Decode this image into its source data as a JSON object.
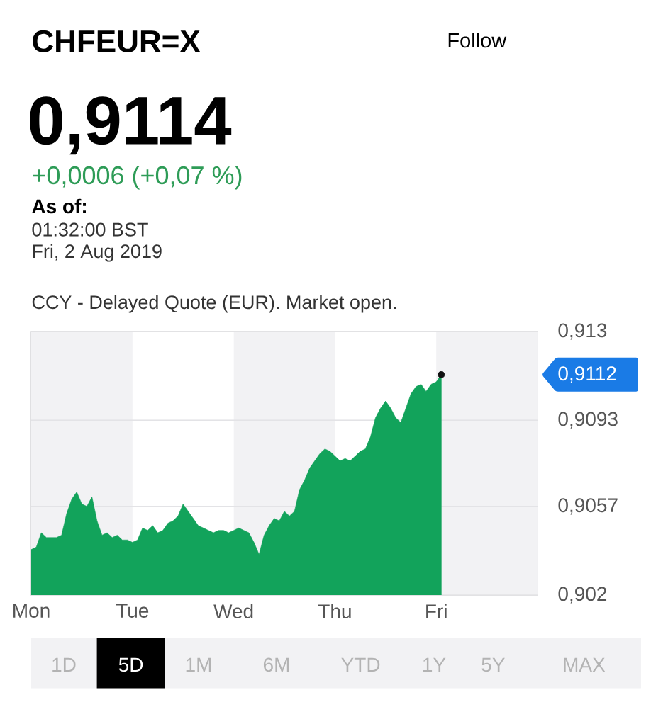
{
  "chart_data": {
    "type": "area",
    "title": "CHFEUR=X",
    "subtitle": "0,9114",
    "annotations": [
      "+0,0006 (+0,07 %)",
      "As of:",
      "01:32:00 BST",
      "Fri, 2 Aug 2019",
      "CCY - Delayed Quote (EUR). Market open.",
      "Follow",
      "0,9112",
      "1D",
      "5D",
      "1M",
      "6M",
      "YTD",
      "1Y",
      "5Y",
      "MAX"
    ],
    "categories": [
      "Mon",
      null,
      null,
      null,
      null,
      null,
      null,
      null,
      null,
      null,
      null,
      null,
      null,
      null,
      null,
      null,
      null,
      null,
      null,
      null,
      "Tue",
      null,
      null,
      null,
      null,
      null,
      null,
      null,
      null,
      null,
      null,
      null,
      null,
      null,
      null,
      null,
      null,
      null,
      null,
      null,
      "Wed",
      null,
      null,
      null,
      null,
      null,
      null,
      null,
      null,
      null,
      null,
      null,
      null,
      null,
      null,
      null,
      null,
      null,
      null,
      null,
      "Thu",
      null,
      null,
      null,
      null,
      null,
      null,
      null,
      null,
      null,
      null,
      null,
      null,
      null,
      null,
      null,
      null,
      null,
      null,
      null,
      "Fri",
      null,
      null,
      null,
      null,
      null,
      null,
      null,
      null,
      null,
      null,
      null,
      null,
      null,
      null,
      null,
      null,
      null,
      null,
      null,
      null
    ],
    "series": [
      {
        "color": "#12a35b",
        "values": [
          0.9039,
          0.904,
          0.9046,
          0.9044,
          0.9044,
          0.9044,
          0.9045,
          0.9054,
          0.906,
          0.9063,
          0.9058,
          0.9057,
          0.9061,
          0.9051,
          0.9045,
          0.9046,
          0.9044,
          0.9045,
          0.9043,
          0.9043,
          0.9042,
          0.9043,
          0.9048,
          0.9047,
          0.9049,
          0.9046,
          0.9047,
          0.905,
          0.9051,
          0.9053,
          0.9058,
          0.9055,
          0.9052,
          0.9049,
          0.9048,
          0.9047,
          0.9046,
          0.9047,
          0.9047,
          0.9046,
          0.9047,
          0.9048,
          0.9047,
          0.9046,
          0.9042,
          0.9037,
          0.9045,
          0.9049,
          0.9052,
          0.9051,
          0.9055,
          0.9053,
          0.9055,
          0.9064,
          0.9068,
          0.9073,
          0.9076,
          0.9079,
          0.9081,
          0.908,
          0.9078,
          0.9076,
          0.9077,
          0.9076,
          0.9078,
          0.908,
          0.9081,
          0.9086,
          0.9094,
          0.9098,
          0.9101,
          0.9098,
          0.9094,
          0.9092,
          0.9098,
          0.9104,
          0.9107,
          0.9108,
          0.9105,
          0.9108,
          0.9109,
          0.9112,
          null,
          null,
          null,
          null,
          null,
          null,
          null,
          null,
          null,
          null,
          null,
          null,
          null,
          null,
          null,
          null,
          null,
          null,
          null
        ]
      },
      {
        "type": "scatter",
        "color": "#111111",
        "values": [
          null,
          null,
          null,
          null,
          null,
          null,
          null,
          null,
          null,
          null,
          null,
          null,
          null,
          null,
          null,
          null,
          null,
          null,
          null,
          null,
          null,
          null,
          null,
          null,
          null,
          null,
          null,
          null,
          null,
          null,
          null,
          null,
          null,
          null,
          null,
          null,
          null,
          null,
          null,
          null,
          null,
          null,
          null,
          null,
          null,
          null,
          null,
          null,
          null,
          null,
          null,
          null,
          null,
          null,
          null,
          null,
          null,
          null,
          null,
          null,
          null,
          null,
          null,
          null,
          null,
          null,
          null,
          null,
          null,
          null,
          null,
          null,
          null,
          null,
          null,
          null,
          null,
          null,
          null,
          null,
          null,
          0.9112,
          null,
          null,
          null,
          null,
          null,
          null,
          null,
          null,
          null,
          null,
          null,
          null,
          null,
          null,
          null,
          null,
          null,
          null,
          null
        ]
      }
    ],
    "ylim": [
      0.902,
      0.913
    ],
    "yticks": [
      {
        "value": 0.902,
        "label": "0,902"
      },
      {
        "value": 0.9057,
        "label": "0,9057"
      },
      {
        "value": 0.9093,
        "label": "0,9093"
      },
      {
        "value": 0.913,
        "label": "0,913"
      }
    ],
    "grid": "y"
  }
}
